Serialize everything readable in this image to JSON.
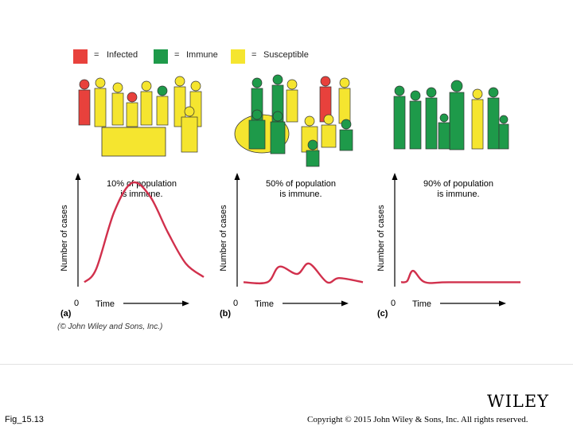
{
  "legend": {
    "items": [
      {
        "label": "Infected",
        "color": "#e8413c"
      },
      {
        "label": "Immune",
        "color": "#1e9a4a"
      },
      {
        "label": "Susceptible",
        "color": "#f5e52f"
      }
    ],
    "separator": "="
  },
  "panels": [
    {
      "letter": "(a)",
      "title_line1": "10% of population",
      "title_line2": "is immune."
    },
    {
      "letter": "(b)",
      "title_line1": "50% of population",
      "title_line2": "is immune."
    },
    {
      "letter": "(c)",
      "title_line1": "90% of population",
      "title_line2": "is immune."
    }
  ],
  "axes": {
    "ylabel": "Number of cases",
    "xlabel": "Time",
    "origin": "0"
  },
  "chart_data": [
    {
      "type": "line",
      "shape": "single large epidemic peak",
      "x": [
        0,
        0.1,
        0.25,
        0.4,
        0.55,
        0.7,
        0.85,
        1.0
      ],
      "y": [
        0.02,
        0.15,
        0.7,
        0.98,
        0.85,
        0.5,
        0.2,
        0.07
      ]
    },
    {
      "type": "line",
      "shape": "small sporadic outbreaks",
      "x": [
        0,
        0.2,
        0.3,
        0.45,
        0.55,
        0.7,
        0.8,
        1.0
      ],
      "y": [
        0.02,
        0.02,
        0.17,
        0.1,
        0.2,
        0.02,
        0.06,
        0.02
      ]
    },
    {
      "type": "line",
      "shape": "single small blip then flat",
      "x": [
        0,
        0.05,
        0.1,
        0.2,
        0.4,
        1.0
      ],
      "y": [
        0.02,
        0.03,
        0.13,
        0.02,
        0.02,
        0.02
      ]
    }
  ],
  "credit": "(© John Wiley and Sons, Inc.)",
  "figure_number": "Fig_15.13",
  "publisher_logo": "WILEY",
  "copyright": "Copyright © 2015 John Wiley & Sons, Inc. All rights reserved."
}
